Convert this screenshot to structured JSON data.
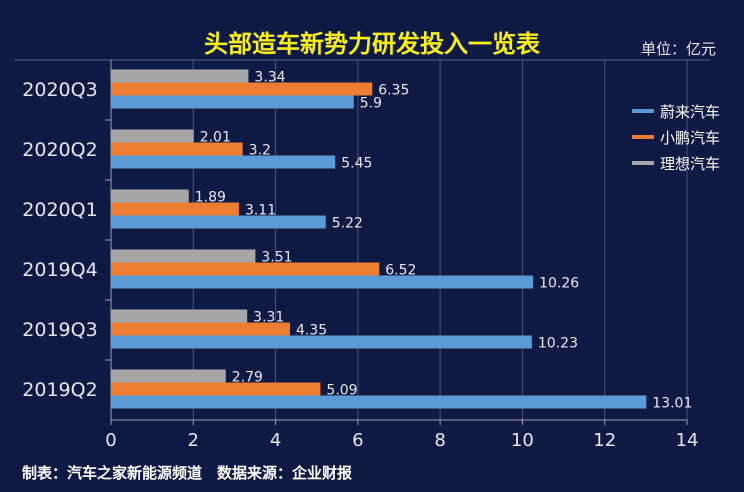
{
  "chart_data": {
    "type": "bar",
    "orientation": "horizontal",
    "title": "头部造车新势力研发投入一览表",
    "unit_label": "单位：亿元",
    "categories": [
      "2020Q3",
      "2020Q2",
      "2020Q1",
      "2019Q4",
      "2019Q3",
      "2019Q2"
    ],
    "series": [
      {
        "name": "理想汽车",
        "color": "#a6a6a6",
        "values": [
          3.34,
          2.01,
          1.89,
          3.51,
          3.31,
          2.79
        ]
      },
      {
        "name": "小鹏汽车",
        "color": "#ed7d31",
        "values": [
          6.35,
          3.2,
          3.11,
          6.52,
          4.35,
          5.09
        ]
      },
      {
        "name": "蔚来汽车",
        "color": "#5b9bd5",
        "values": [
          5.9,
          5.45,
          5.22,
          10.26,
          10.23,
          13.01
        ]
      }
    ],
    "legend_order": [
      2,
      1,
      0
    ],
    "xlim": [
      0,
      14
    ],
    "xticks": [
      "0",
      "2",
      "4",
      "6",
      "8",
      "10",
      "12",
      "14"
    ],
    "grid": true,
    "legend_position": "right",
    "footer": "制表：汽车之家新能源频道　数据来源：企业财报"
  }
}
